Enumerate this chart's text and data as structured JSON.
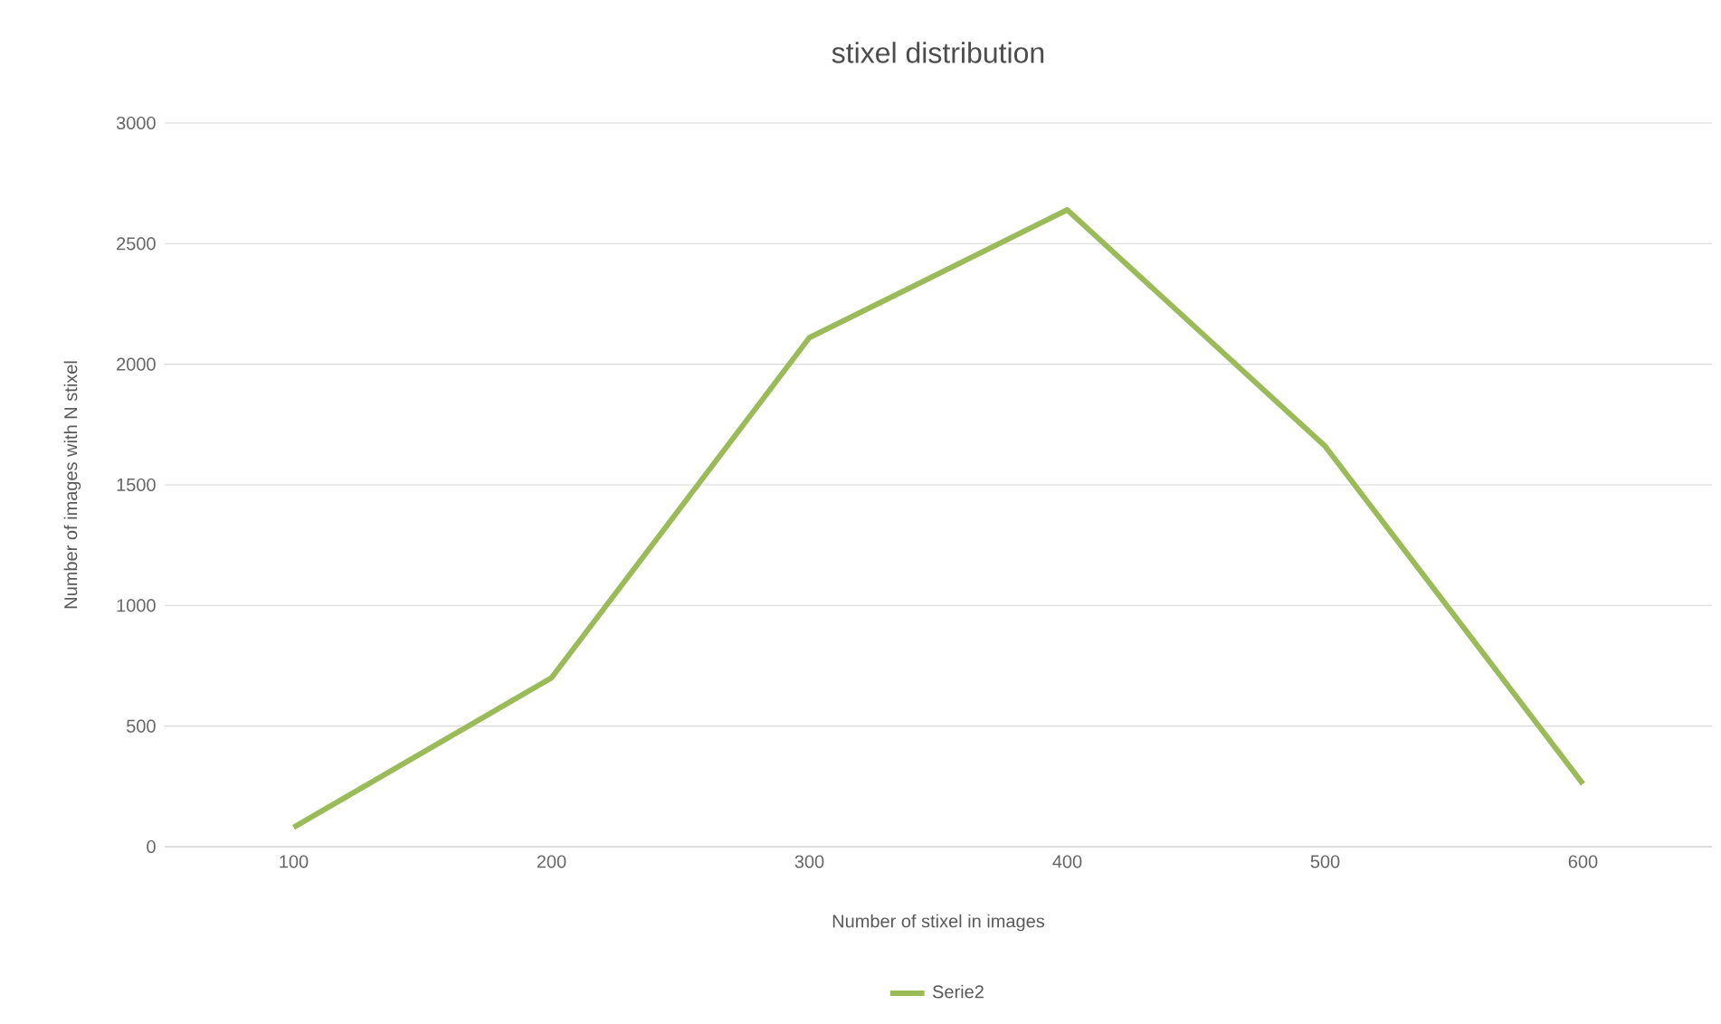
{
  "chart_data": {
    "type": "line",
    "title": "stixel distribution",
    "xlabel": "Number  of stixel in images",
    "ylabel": "Number  of images with N stixel",
    "categories": [
      "100",
      "200",
      "300",
      "400",
      "500",
      "600"
    ],
    "series": [
      {
        "name": "Serie2",
        "color": "#9bbb59",
        "values": [
          80,
          700,
          2110,
          2640,
          1660,
          260
        ]
      }
    ],
    "ylim": [
      0,
      3000
    ],
    "yticks": [
      0,
      500,
      1000,
      1500,
      2000,
      2500,
      3000
    ],
    "grid": "y",
    "legend": "bottom"
  }
}
